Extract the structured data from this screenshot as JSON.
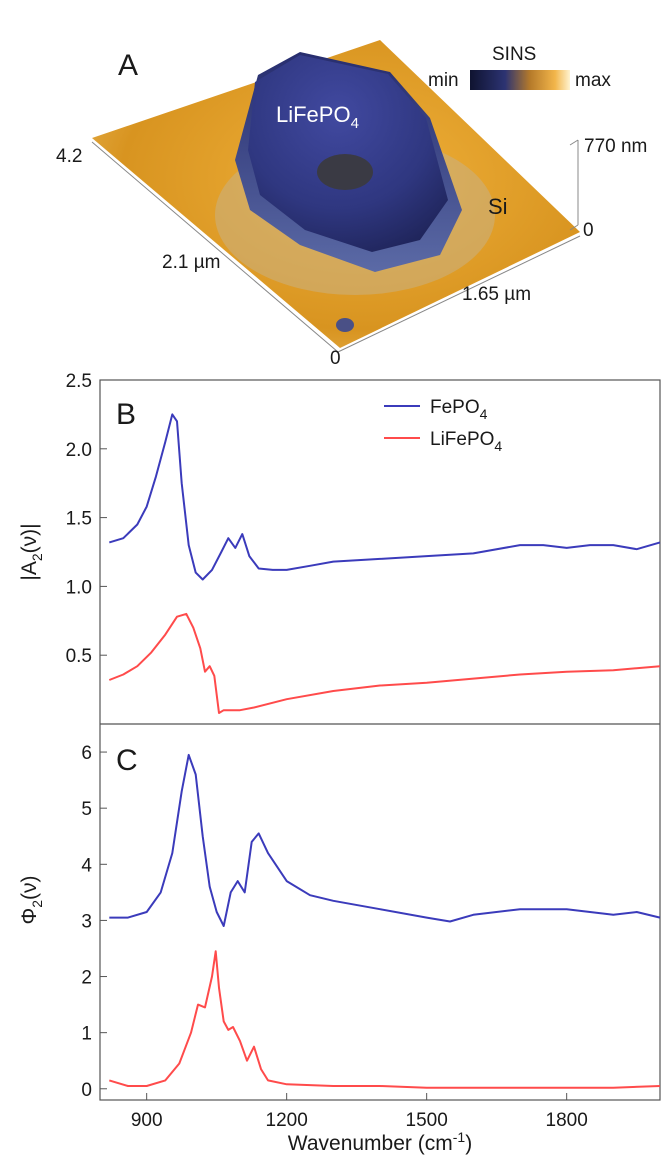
{
  "panel_a": {
    "letter": "A",
    "crystal_label": "LiFePO",
    "crystal_label_sub": "4",
    "substrate_label": "Si",
    "colorbar_title": "SINS",
    "colorbar_min": "min",
    "colorbar_max": "max",
    "z_top_label": "770 nm",
    "z_zero_label": "0",
    "left_edge_top": "4.2",
    "left_edge_mid": "2.1 µm",
    "right_edge_mid": "1.65 µm",
    "origin_label": "0",
    "colors": {
      "substrate": "#e0a21f",
      "crystal": "#343c8a"
    }
  },
  "chart_data": [
    {
      "type": "line",
      "panel_letter": "B",
      "ylabel_main": "|A",
      "ylabel_sub": "2",
      "ylabel_tail": "(ν)|",
      "xlim": [
        800,
        2000
      ],
      "ylim": [
        0,
        2.5
      ],
      "yticks": [
        0.5,
        1.0,
        1.5,
        2.0,
        2.5
      ],
      "ytick_labels": [
        "0.5",
        "1.0",
        "1.5",
        "2.0",
        "2.5"
      ],
      "legend_position": "top-right",
      "series": [
        {
          "name": "FePO",
          "name_sub": "4",
          "color": "#3b3bbb",
          "x": [
            820,
            850,
            880,
            900,
            920,
            940,
            955,
            965,
            975,
            990,
            1005,
            1020,
            1040,
            1060,
            1075,
            1090,
            1105,
            1120,
            1140,
            1170,
            1200,
            1250,
            1300,
            1400,
            1500,
            1600,
            1700,
            1750,
            1800,
            1850,
            1900,
            1950,
            2000
          ],
          "y": [
            1.32,
            1.35,
            1.45,
            1.58,
            1.8,
            2.05,
            2.25,
            2.2,
            1.75,
            1.3,
            1.1,
            1.05,
            1.12,
            1.25,
            1.35,
            1.28,
            1.38,
            1.22,
            1.13,
            1.12,
            1.12,
            1.15,
            1.18,
            1.2,
            1.22,
            1.24,
            1.3,
            1.3,
            1.28,
            1.3,
            1.3,
            1.27,
            1.32
          ]
        },
        {
          "name": "LiFePO",
          "name_sub": "4",
          "color": "#ff4b4b",
          "x": [
            820,
            850,
            880,
            910,
            940,
            965,
            985,
            1000,
            1015,
            1025,
            1035,
            1045,
            1055,
            1065,
            1080,
            1100,
            1130,
            1200,
            1300,
            1400,
            1500,
            1600,
            1700,
            1800,
            1900,
            2000
          ],
          "y": [
            0.32,
            0.36,
            0.42,
            0.52,
            0.65,
            0.78,
            0.8,
            0.7,
            0.55,
            0.38,
            0.42,
            0.35,
            0.08,
            0.1,
            0.1,
            0.1,
            0.12,
            0.18,
            0.24,
            0.28,
            0.3,
            0.33,
            0.36,
            0.38,
            0.39,
            0.42
          ]
        }
      ]
    },
    {
      "type": "line",
      "panel_letter": "C",
      "ylabel_main": "Φ",
      "ylabel_sub": "2",
      "ylabel_tail": "(ν)",
      "xlabel_main": "Wavenumber (cm",
      "xlabel_sup": "-1",
      "xlabel_tail": ")",
      "xlim": [
        800,
        2000
      ],
      "ylim": [
        -0.2,
        6.5
      ],
      "xticks": [
        900,
        1200,
        1500,
        1800
      ],
      "xtick_labels": [
        "900",
        "1200",
        "1500",
        "1800"
      ],
      "yticks": [
        0,
        1,
        2,
        3,
        4,
        5,
        6
      ],
      "ytick_labels": [
        "0",
        "1",
        "2",
        "3",
        "4",
        "5",
        "6"
      ],
      "series": [
        {
          "color": "#3b3bbb",
          "x": [
            820,
            860,
            900,
            930,
            955,
            975,
            990,
            1005,
            1020,
            1035,
            1050,
            1065,
            1080,
            1095,
            1110,
            1125,
            1140,
            1160,
            1200,
            1250,
            1300,
            1400,
            1500,
            1550,
            1600,
            1700,
            1800,
            1900,
            1950,
            2000
          ],
          "y": [
            3.05,
            3.05,
            3.15,
            3.5,
            4.2,
            5.3,
            5.95,
            5.6,
            4.5,
            3.6,
            3.15,
            2.9,
            3.5,
            3.7,
            3.5,
            4.4,
            4.55,
            4.2,
            3.7,
            3.45,
            3.35,
            3.2,
            3.05,
            2.98,
            3.1,
            3.2,
            3.2,
            3.1,
            3.15,
            3.05
          ]
        },
        {
          "color": "#ff4b4b",
          "x": [
            820,
            860,
            900,
            940,
            970,
            995,
            1010,
            1025,
            1040,
            1048,
            1055,
            1065,
            1075,
            1085,
            1100,
            1115,
            1130,
            1145,
            1160,
            1200,
            1300,
            1400,
            1500,
            1600,
            1700,
            1800,
            1900,
            2000
          ],
          "y": [
            0.15,
            0.05,
            0.05,
            0.15,
            0.45,
            1.0,
            1.5,
            1.45,
            2.0,
            2.45,
            1.8,
            1.2,
            1.05,
            1.1,
            0.85,
            0.5,
            0.75,
            0.35,
            0.15,
            0.08,
            0.05,
            0.05,
            0.02,
            0.02,
            0.02,
            0.02,
            0.02,
            0.05
          ]
        }
      ]
    }
  ]
}
